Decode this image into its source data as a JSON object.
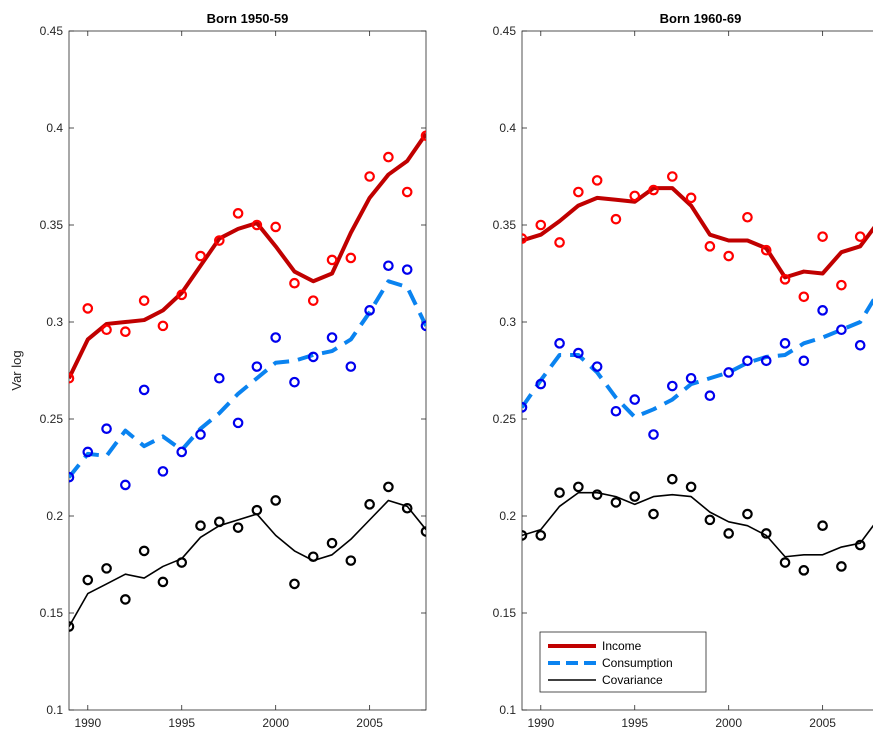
{
  "chart_data": [
    {
      "type": "line",
      "title": "Born 1950-59",
      "ylabel": "Var log",
      "xlabel": "",
      "xlim": [
        1989,
        2008
      ],
      "ylim": [
        0.1,
        0.45
      ],
      "xticks": [
        "1990",
        "1995",
        "2000",
        "2005"
      ],
      "yticks": [
        "0.1",
        "0.15",
        "0.2",
        "0.25",
        "0.3",
        "0.35",
        "0.4",
        "0.45"
      ],
      "x": [
        1989,
        1990,
        1991,
        1992,
        1993,
        1994,
        1995,
        1996,
        1997,
        1998,
        1999,
        2000,
        2001,
        2002,
        2003,
        2004,
        2005,
        2006,
        2007,
        2008
      ],
      "series": [
        {
          "name": "Income",
          "kind": "fit",
          "color": "#c00000",
          "values": [
            0.271,
            0.291,
            0.299,
            0.3,
            0.301,
            0.306,
            0.315,
            0.329,
            0.343,
            0.348,
            0.351,
            0.339,
            0.326,
            0.321,
            0.325,
            0.346,
            0.364,
            0.376,
            0.383,
            0.397
          ]
        },
        {
          "name": "Income",
          "kind": "data",
          "color": "#ff0000",
          "values": [
            0.271,
            0.307,
            0.296,
            0.295,
            0.311,
            0.298,
            0.314,
            0.334,
            0.342,
            0.356,
            0.35,
            0.349,
            0.32,
            0.311,
            0.332,
            0.333,
            0.375,
            0.385,
            0.367,
            0.396
          ]
        },
        {
          "name": "Consumption",
          "kind": "fit",
          "color": "#0a83f0",
          "values": [
            0.22,
            0.232,
            0.231,
            0.244,
            0.236,
            0.241,
            0.234,
            0.245,
            0.253,
            0.263,
            0.271,
            0.279,
            0.28,
            0.283,
            0.285,
            0.291,
            0.305,
            0.321,
            0.318,
            0.298
          ]
        },
        {
          "name": "Consumption",
          "kind": "data",
          "color": "#0000ee",
          "values": [
            0.22,
            0.233,
            0.245,
            0.216,
            0.265,
            0.223,
            0.233,
            0.242,
            0.271,
            0.248,
            0.277,
            0.292,
            0.269,
            0.282,
            0.292,
            0.277,
            0.306,
            0.329,
            0.327,
            0.298
          ]
        },
        {
          "name": "Covariance",
          "kind": "fit",
          "color": "#000000",
          "values": [
            0.143,
            0.16,
            0.165,
            0.17,
            0.168,
            0.174,
            0.178,
            0.189,
            0.195,
            0.198,
            0.201,
            0.19,
            0.182,
            0.177,
            0.18,
            0.188,
            0.198,
            0.208,
            0.205,
            0.193
          ]
        },
        {
          "name": "Covariance",
          "kind": "data",
          "color": "#000000",
          "values": [
            0.143,
            0.167,
            0.173,
            0.157,
            0.182,
            0.166,
            0.176,
            0.195,
            0.197,
            0.194,
            0.203,
            0.208,
            0.165,
            0.179,
            0.186,
            0.177,
            0.206,
            0.215,
            0.204,
            0.192
          ]
        }
      ]
    },
    {
      "type": "line",
      "title": "Born 1960-69",
      "ylabel": "",
      "xlabel": "",
      "xlim": [
        1989,
        2008
      ],
      "ylim": [
        0.1,
        0.45
      ],
      "xticks": [
        "1990",
        "1995",
        "2000",
        "2005"
      ],
      "yticks": [
        "0.1",
        "0.15",
        "0.2",
        "0.25",
        "0.3",
        "0.35",
        "0.4",
        "0.45"
      ],
      "x": [
        1989,
        1990,
        1991,
        1992,
        1993,
        1994,
        1995,
        1996,
        1997,
        1998,
        1999,
        2000,
        2001,
        2002,
        2003,
        2004,
        2005,
        2006,
        2007,
        2008
      ],
      "series": [
        {
          "name": "Income",
          "kind": "fit",
          "color": "#c00000",
          "values": [
            0.342,
            0.345,
            0.352,
            0.36,
            0.364,
            0.363,
            0.362,
            0.369,
            0.369,
            0.36,
            0.345,
            0.342,
            0.342,
            0.338,
            0.323,
            0.326,
            0.325,
            0.336,
            0.339,
            0.352
          ]
        },
        {
          "name": "Income",
          "kind": "data",
          "color": "#ff0000",
          "values": [
            0.343,
            0.35,
            0.341,
            0.367,
            0.373,
            0.353,
            0.365,
            0.368,
            0.375,
            0.364,
            0.339,
            0.334,
            0.354,
            0.337,
            0.322,
            0.313,
            0.344,
            0.319,
            0.344,
            0.352
          ]
        },
        {
          "name": "Consumption",
          "kind": "fit",
          "color": "#0a83f0",
          "values": [
            0.256,
            0.27,
            0.283,
            0.283,
            0.274,
            0.261,
            0.251,
            0.255,
            0.26,
            0.268,
            0.271,
            0.274,
            0.279,
            0.282,
            0.283,
            0.289,
            0.292,
            0.296,
            0.3,
            0.316
          ]
        },
        {
          "name": "Consumption",
          "kind": "data",
          "color": "#0000ee",
          "values": [
            0.256,
            0.268,
            0.289,
            0.284,
            0.277,
            0.254,
            0.26,
            0.242,
            0.267,
            0.271,
            0.262,
            0.274,
            0.28,
            0.28,
            0.289,
            0.28,
            0.306,
            0.296,
            0.288,
            0.316
          ]
        },
        {
          "name": "Covariance",
          "kind": "fit",
          "color": "#000000",
          "values": [
            0.19,
            0.193,
            0.205,
            0.212,
            0.212,
            0.21,
            0.206,
            0.21,
            0.211,
            0.21,
            0.202,
            0.197,
            0.195,
            0.19,
            0.179,
            0.18,
            0.18,
            0.184,
            0.186,
            0.199
          ]
        },
        {
          "name": "Covariance",
          "kind": "data",
          "color": "#000000",
          "values": [
            0.19,
            0.19,
            0.212,
            0.215,
            0.211,
            0.207,
            0.21,
            0.201,
            0.219,
            0.215,
            0.198,
            0.191,
            0.201,
            0.191,
            0.176,
            0.172,
            0.195,
            0.174,
            0.185,
            0.199
          ]
        }
      ]
    }
  ],
  "legend": {
    "items": [
      {
        "label": "Income",
        "color": "#c00000",
        "style": "solid-thick"
      },
      {
        "label": "Consumption",
        "color": "#0a83f0",
        "style": "dashed-thick"
      },
      {
        "label": "Covariance",
        "color": "#000000",
        "style": "solid-thin"
      }
    ]
  }
}
